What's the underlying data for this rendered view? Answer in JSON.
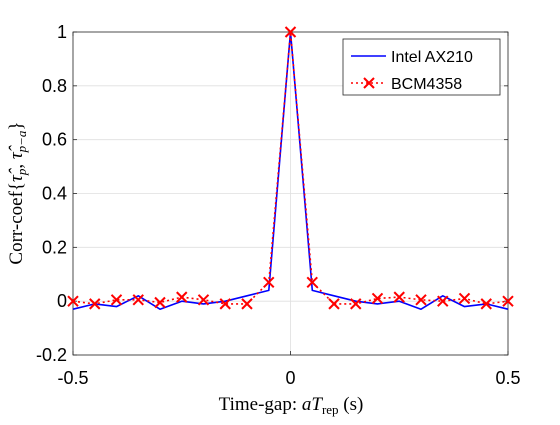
{
  "chart_data": {
    "type": "line",
    "xlabel": {
      "main": "Time-gap: ",
      "var": "aT",
      "sub": "rep",
      "unit": " (s)"
    },
    "ylabel": {
      "main": "Corr-coef{",
      "t1": "τ̂",
      "s1": "p",
      "sep": ", ",
      "t2": "τ̂",
      "s2": "p−a",
      "end": "}"
    },
    "xlim": [
      -0.5,
      0.5
    ],
    "ylim": [
      -0.2,
      1
    ],
    "xticks": [
      -0.5,
      0,
      0.5
    ],
    "xtick_labels": [
      "-0.5",
      "0",
      "0.5"
    ],
    "yticks": [
      -0.2,
      0,
      0.2,
      0.4,
      0.6,
      0.8,
      1
    ],
    "ytick_labels": [
      "-0.2",
      "0",
      "0.2",
      "0.4",
      "0.6",
      "0.8",
      "1"
    ],
    "grid": true,
    "legend_position": "top-right",
    "x": [
      -0.5,
      -0.45,
      -0.4,
      -0.35,
      -0.3,
      -0.25,
      -0.2,
      -0.15,
      -0.1,
      -0.05,
      0,
      0.05,
      0.1,
      0.15,
      0.2,
      0.25,
      0.3,
      0.35,
      0.4,
      0.45,
      0.5
    ],
    "series": [
      {
        "name": "Intel AX210",
        "color": "#0000ff",
        "style": "solid",
        "marker": "none",
        "values": [
          -0.03,
          -0.01,
          -0.02,
          0.02,
          -0.03,
          0.0,
          -0.01,
          0.0,
          0.02,
          0.04,
          1.0,
          0.04,
          0.02,
          0.0,
          -0.01,
          0.0,
          -0.03,
          0.02,
          -0.02,
          -0.01,
          -0.03
        ]
      },
      {
        "name": "BCM4358",
        "color": "#ff0000",
        "style": "dotted",
        "marker": "x",
        "values": [
          0.0,
          -0.01,
          0.005,
          0.005,
          -0.005,
          0.015,
          0.005,
          -0.01,
          -0.01,
          0.07,
          1.0,
          0.07,
          -0.01,
          -0.01,
          0.01,
          0.015,
          0.005,
          0.0,
          0.01,
          -0.01,
          0.0
        ]
      }
    ]
  }
}
